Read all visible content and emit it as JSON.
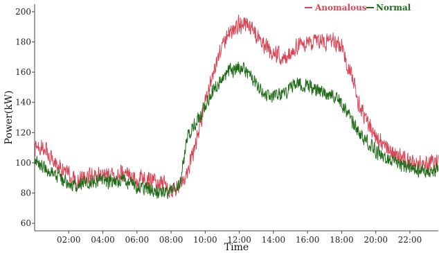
{
  "chart_data": {
    "type": "line",
    "xlabel": "Time",
    "ylabel": "Power(kW)",
    "xlim": [
      "00:00",
      "23:40"
    ],
    "ylim": [
      55,
      205
    ],
    "x_ticks": [
      "02:00",
      "04:00",
      "06:00",
      "08:00",
      "10:00",
      "12:00",
      "14:00",
      "16:00",
      "18:00",
      "20:00",
      "22:00"
    ],
    "y_ticks": [
      60,
      80,
      100,
      120,
      140,
      160,
      180,
      200
    ],
    "grid": false,
    "legend_position": "top-right",
    "x": [
      "00:00",
      "00:30",
      "01:00",
      "01:30",
      "02:00",
      "02:30",
      "03:00",
      "03:30",
      "04:00",
      "04:30",
      "05:00",
      "05:30",
      "06:00",
      "06:30",
      "07:00",
      "07:30",
      "08:00",
      "08:30",
      "09:00",
      "09:30",
      "10:00",
      "10:30",
      "11:00",
      "11:30",
      "12:00",
      "12:30",
      "13:00",
      "13:30",
      "14:00",
      "14:30",
      "15:00",
      "15:30",
      "16:00",
      "16:30",
      "17:00",
      "17:30",
      "18:00",
      "18:30",
      "19:00",
      "19:30",
      "20:00",
      "20:30",
      "21:00",
      "21:30",
      "22:00",
      "22:30",
      "23:00",
      "23:30",
      "23:40"
    ],
    "series": [
      {
        "name": "Anomalous",
        "color": "#d94455",
        "values": [
          108,
          112,
          103,
          97,
          92,
          88,
          90,
          91,
          92,
          90,
          94,
          92,
          89,
          90,
          88,
          86,
          83,
          85,
          95,
          115,
          140,
          162,
          176,
          188,
          192,
          191,
          185,
          177,
          172,
          170,
          174,
          178,
          179,
          180,
          179,
          181,
          178,
          160,
          140,
          126,
          118,
          110,
          106,
          103,
          101,
          99,
          98,
          100,
          101
        ]
      },
      {
        "name": "Normal",
        "color": "#1e6b17",
        "values": [
          100,
          98,
          94,
          90,
          86,
          85,
          86,
          87,
          88,
          87,
          88,
          87,
          84,
          83,
          82,
          80,
          80,
          86,
          118,
          127,
          138,
          148,
          156,
          161,
          163,
          160,
          152,
          146,
          143,
          145,
          150,
          152,
          151,
          148,
          146,
          144,
          140,
          130,
          120,
          114,
          108,
          104,
          101,
          99,
          97,
          95,
          94,
          95,
          97
        ]
      }
    ]
  }
}
